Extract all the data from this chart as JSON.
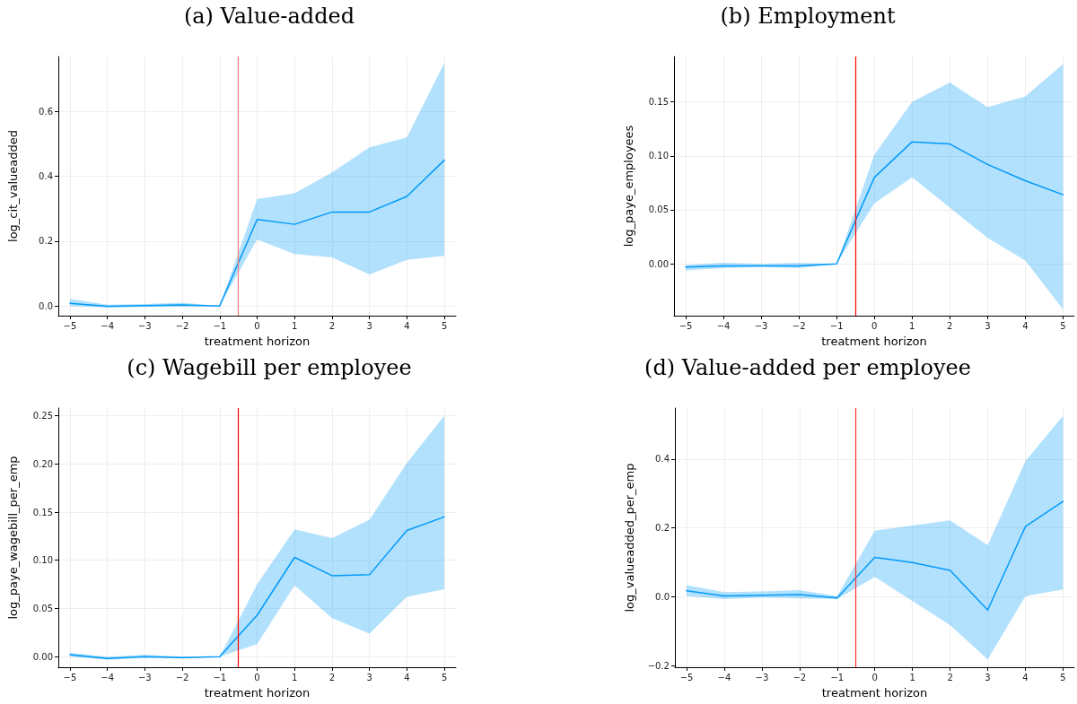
{
  "chart_data": [
    {
      "type": "line",
      "title": "(a) Value-added",
      "xlabel": "treatment horizon",
      "ylabel": "log_cit_valueadded",
      "grid": true,
      "marker": "none",
      "line_style": "solid",
      "x": [
        -5,
        -4,
        -3,
        -2,
        -1,
        0,
        1,
        2,
        3,
        4,
        5
      ],
      "xlim": [
        -5.31,
        5.31
      ],
      "xticks": [
        {
          "value": -5,
          "label": "−5"
        },
        {
          "value": -4,
          "label": "−4"
        },
        {
          "value": -3,
          "label": "−3"
        },
        {
          "value": -2,
          "label": "−2"
        },
        {
          "value": -1,
          "label": "−1"
        },
        0,
        1,
        2,
        3,
        4,
        5
      ],
      "ylim": [
        -0.03,
        0.77
      ],
      "yticks": [
        {
          "value": 0,
          "label": "0.0"
        },
        0.2,
        0.4,
        0.6
      ],
      "series": [
        {
          "color": "#009af9",
          "values": [
            0.008,
            -0.001,
            0.001,
            0.003,
            0,
            0.267,
            0.252,
            0.29,
            0.29,
            0.338,
            0.45
          ],
          "lower": [
            0.0,
            -0.005,
            -0.003,
            -0.002,
            0,
            0.205,
            0.16,
            0.15,
            0.097,
            0.142,
            0.155
          ],
          "upper": [
            0.022,
            0.004,
            0.006,
            0.01,
            0,
            0.33,
            0.348,
            0.412,
            0.49,
            0.52,
            0.75
          ]
        }
      ],
      "ref_lines": [
        {
          "axis": "x",
          "value": -0.5,
          "color": "#f47c7c"
        }
      ]
    },
    {
      "type": "line",
      "title": "(b) Employment",
      "xlabel": "treatment horizon",
      "ylabel": "log_paye_employees",
      "grid": true,
      "marker": "none",
      "line_style": "solid",
      "x": [
        -5,
        -4,
        -3,
        -2,
        -1,
        0,
        1,
        2,
        3,
        4,
        5
      ],
      "xlim": [
        -5.31,
        5.3
      ],
      "xticks": [
        {
          "value": -5,
          "label": "−5"
        },
        {
          "value": -4,
          "label": "−4"
        },
        {
          "value": -3,
          "label": "−3"
        },
        {
          "value": -2,
          "label": "−2"
        },
        {
          "value": -1,
          "label": "−1"
        },
        0,
        1,
        2,
        3,
        4,
        5
      ],
      "ylim": [
        -0.048,
        0.192
      ],
      "yticks": [
        {
          "value": 0,
          "label": "0.00"
        },
        0.05,
        {
          "value": 0.1,
          "label": "0.10"
        },
        0.15
      ],
      "series": [
        {
          "color": "#009af9",
          "values": [
            -0.003,
            -0.002,
            -0.002,
            -0.002,
            0,
            0.08,
            0.113,
            0.111,
            0.092,
            0.077,
            0.064
          ],
          "lower": [
            -0.006,
            -0.004,
            -0.003,
            -0.004,
            0,
            0.056,
            0.08,
            0.052,
            0.024,
            0.003,
            -0.042
          ],
          "upper": [
            -0.001,
            0.001,
            0.0,
            0.001,
            0,
            0.101,
            0.15,
            0.168,
            0.145,
            0.155,
            0.185
          ]
        }
      ],
      "ref_lines": [
        {
          "axis": "x",
          "value": -0.5,
          "color": "#ff0000"
        }
      ]
    },
    {
      "type": "line",
      "title": "(c) Wagebill per employee",
      "xlabel": "treatment horizon",
      "ylabel": "log_paye_wagebill_per_emp",
      "grid": true,
      "marker": "none",
      "line_style": "solid",
      "x": [
        -5,
        -4,
        -3,
        -2,
        -1,
        0,
        1,
        2,
        3,
        4,
        5
      ],
      "xlim": [
        -5.31,
        5.31
      ],
      "xticks": [
        {
          "value": -5,
          "label": "−5"
        },
        {
          "value": -4,
          "label": "−4"
        },
        {
          "value": -3,
          "label": "−3"
        },
        {
          "value": -2,
          "label": "−2"
        },
        {
          "value": -1,
          "label": "−1"
        },
        0,
        1,
        2,
        3,
        4,
        5
      ],
      "ylim": [
        -0.011,
        0.258
      ],
      "yticks": [
        {
          "value": 0,
          "label": "0.00"
        },
        0.05,
        {
          "value": 0.1,
          "label": "0.10"
        },
        0.15,
        {
          "value": 0.2,
          "label": "0.20"
        },
        0.25
      ],
      "series": [
        {
          "color": "#009af9",
          "values": [
            0.002,
            -0.002,
            0.0,
            -0.001,
            0,
            0.043,
            0.103,
            0.084,
            0.085,
            0.131,
            0.145
          ],
          "lower": [
            0.0,
            -0.003,
            -0.001,
            -0.002,
            0,
            0.013,
            0.074,
            0.04,
            0.024,
            0.062,
            0.07
          ],
          "upper": [
            0.004,
            0.0,
            0.002,
            0.0,
            0,
            0.075,
            0.132,
            0.123,
            0.142,
            0.201,
            0.25
          ]
        }
      ],
      "ref_lines": [
        {
          "axis": "x",
          "value": -0.5,
          "color": "#ff0000"
        }
      ]
    },
    {
      "type": "line",
      "title": "(d) Value-added per employee",
      "xlabel": "treatment horizon",
      "ylabel": "log_valueadded_per_emp",
      "grid": true,
      "marker": "none",
      "line_style": "solid",
      "x": [
        -5,
        -4,
        -3,
        -2,
        -1,
        0,
        1,
        2,
        3,
        4,
        5
      ],
      "xlim": [
        -5.31,
        5.3
      ],
      "xticks": [
        {
          "value": -5,
          "label": "−5"
        },
        {
          "value": -4,
          "label": "−4"
        },
        {
          "value": -3,
          "label": "−3"
        },
        {
          "value": -2,
          "label": "−2"
        },
        {
          "value": -1,
          "label": "−1"
        },
        0,
        1,
        2,
        3,
        4,
        5
      ],
      "ylim": [
        -0.204,
        0.548
      ],
      "yticks": [
        {
          "value": -0.2,
          "label": "−0.2"
        },
        {
          "value": 0,
          "label": "0.0"
        },
        0.2,
        0.4
      ],
      "series": [
        {
          "color": "#009af9",
          "values": [
            0.018,
            0.003,
            0.005,
            0.007,
            -0.003,
            0.115,
            0.1,
            0.077,
            -0.038,
            0.204,
            0.277
          ],
          "lower": [
            0.003,
            -0.006,
            -0.002,
            -0.004,
            -0.006,
            0.058,
            -0.012,
            -0.082,
            -0.182,
            0.002,
            0.022
          ],
          "upper": [
            0.034,
            0.014,
            0.016,
            0.02,
            0.002,
            0.192,
            0.207,
            0.222,
            0.15,
            0.394,
            0.525
          ]
        }
      ],
      "ref_lines": [
        {
          "axis": "x",
          "value": -0.5,
          "color": "#ff3333"
        }
      ]
    }
  ]
}
